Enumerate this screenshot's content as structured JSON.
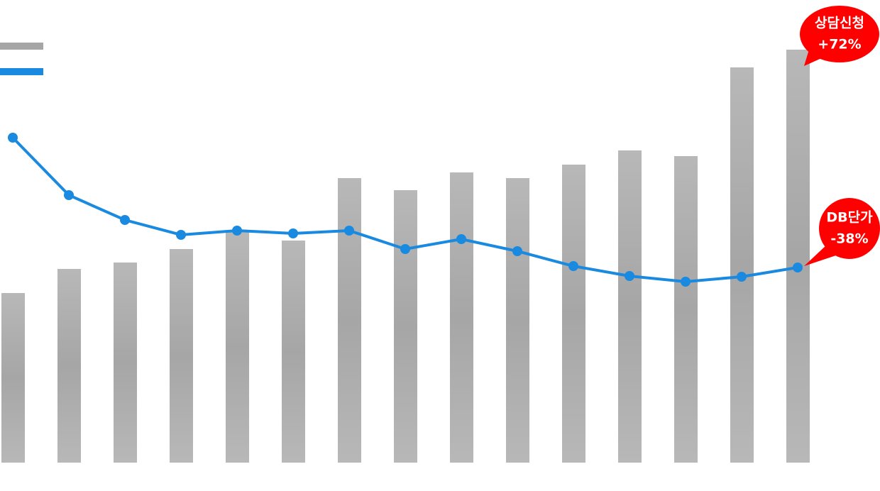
{
  "chart_data": {
    "type": "bar",
    "categories": [
      null,
      null,
      null,
      null,
      null,
      null,
      null,
      null,
      null,
      null,
      null,
      null,
      null,
      null,
      null
    ],
    "ylim": [
      0,
      652
    ],
    "series": [
      {
        "type": "bar",
        "color": "#a6a6a6",
        "values": [
          239,
          273,
          282,
          301,
          327,
          313,
          401,
          384,
          409,
          401,
          420,
          440,
          432,
          557,
          582
        ]
      },
      {
        "type": "line",
        "color": "#1a8ae0",
        "values": [
          458,
          377,
          342,
          321,
          327,
          323,
          327,
          301,
          315,
          298,
          277,
          263,
          255,
          262,
          275
        ]
      }
    ],
    "annotations": [
      {
        "lines": [
          "상담신청",
          "+72%"
        ],
        "color": "#ff0000"
      },
      {
        "lines": [
          "DB단가",
          "-38%"
        ],
        "color": "#ff0000"
      }
    ]
  }
}
